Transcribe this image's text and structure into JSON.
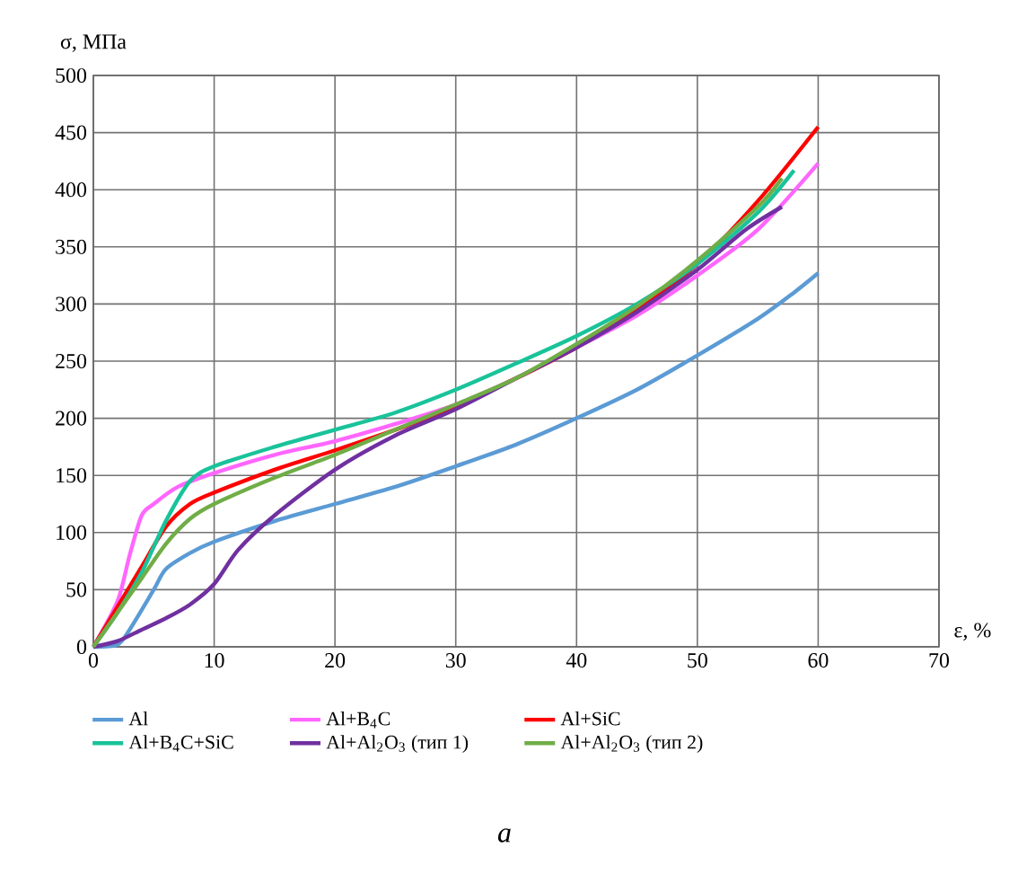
{
  "chart_data": {
    "type": "line",
    "xlabel": "ε, %",
    "ylabel": "σ, МПа",
    "annotations": [
      "a"
    ],
    "xlim": [
      0,
      70
    ],
    "xticks": [
      0,
      10,
      20,
      30,
      40,
      50,
      60,
      70
    ],
    "ylim": [
      0,
      500
    ],
    "yticks": [
      0,
      50,
      100,
      150,
      200,
      250,
      300,
      350,
      400,
      450,
      500
    ],
    "grid": true,
    "legend": "bottom",
    "line_style": "solid",
    "marker": "none",
    "series": [
      {
        "name": "Al",
        "color": "#5b9bd5",
        "x": [
          0,
          2,
          3,
          5,
          6,
          8,
          10,
          15,
          20,
          25,
          30,
          35,
          40,
          45,
          50,
          55,
          58,
          60
        ],
        "values": [
          0,
          2,
          15,
          50,
          68,
          82,
          92,
          110,
          125,
          140,
          158,
          177,
          200,
          225,
          255,
          287,
          310,
          327
        ]
      },
      {
        "name": "Al+B$_{4}$C",
        "color": "#ff66ff",
        "x": [
          0,
          2,
          3,
          4,
          5,
          7,
          10,
          15,
          20,
          25,
          30,
          35,
          40,
          45,
          50,
          55,
          60
        ],
        "values": [
          0,
          40,
          80,
          115,
          125,
          140,
          152,
          168,
          180,
          195,
          212,
          235,
          262,
          290,
          325,
          365,
          423
        ]
      },
      {
        "name": "Al+SiC",
        "color": "#ff0000",
        "x": [
          0,
          2,
          4,
          6,
          8,
          10,
          15,
          20,
          25,
          30,
          35,
          40,
          45,
          50,
          55,
          60
        ],
        "values": [
          0,
          35,
          70,
          105,
          125,
          135,
          155,
          172,
          190,
          210,
          235,
          262,
          295,
          335,
          390,
          455
        ]
      },
      {
        "name": "Al+B$_{4}$C+SiC",
        "color": "#19c39a",
        "x": [
          0,
          2,
          4,
          6,
          8,
          10,
          15,
          20,
          25,
          30,
          35,
          40,
          45,
          50,
          55,
          58
        ],
        "values": [
          0,
          30,
          65,
          110,
          145,
          158,
          175,
          190,
          205,
          225,
          248,
          272,
          300,
          335,
          380,
          417
        ]
      },
      {
        "name": "Al+Al$_{2}$O$_{3}$ (тип 1)",
        "color": "#7030a0",
        "x": [
          0,
          2,
          4,
          6,
          8,
          10,
          12,
          15,
          20,
          25,
          30,
          35,
          40,
          45,
          50,
          54,
          57
        ],
        "values": [
          0,
          5,
          15,
          25,
          37,
          55,
          85,
          115,
          155,
          185,
          208,
          235,
          262,
          293,
          330,
          365,
          385
        ]
      },
      {
        "name": "Al+Al$_{2}$O$_{3}$ (тип 2)",
        "color": "#70ad47",
        "x": [
          0,
          2,
          4,
          6,
          8,
          10,
          15,
          20,
          25,
          30,
          35,
          40,
          45,
          50,
          55,
          57
        ],
        "values": [
          0,
          30,
          60,
          90,
          112,
          125,
          148,
          168,
          190,
          212,
          235,
          265,
          298,
          338,
          385,
          410
        ]
      }
    ]
  }
}
